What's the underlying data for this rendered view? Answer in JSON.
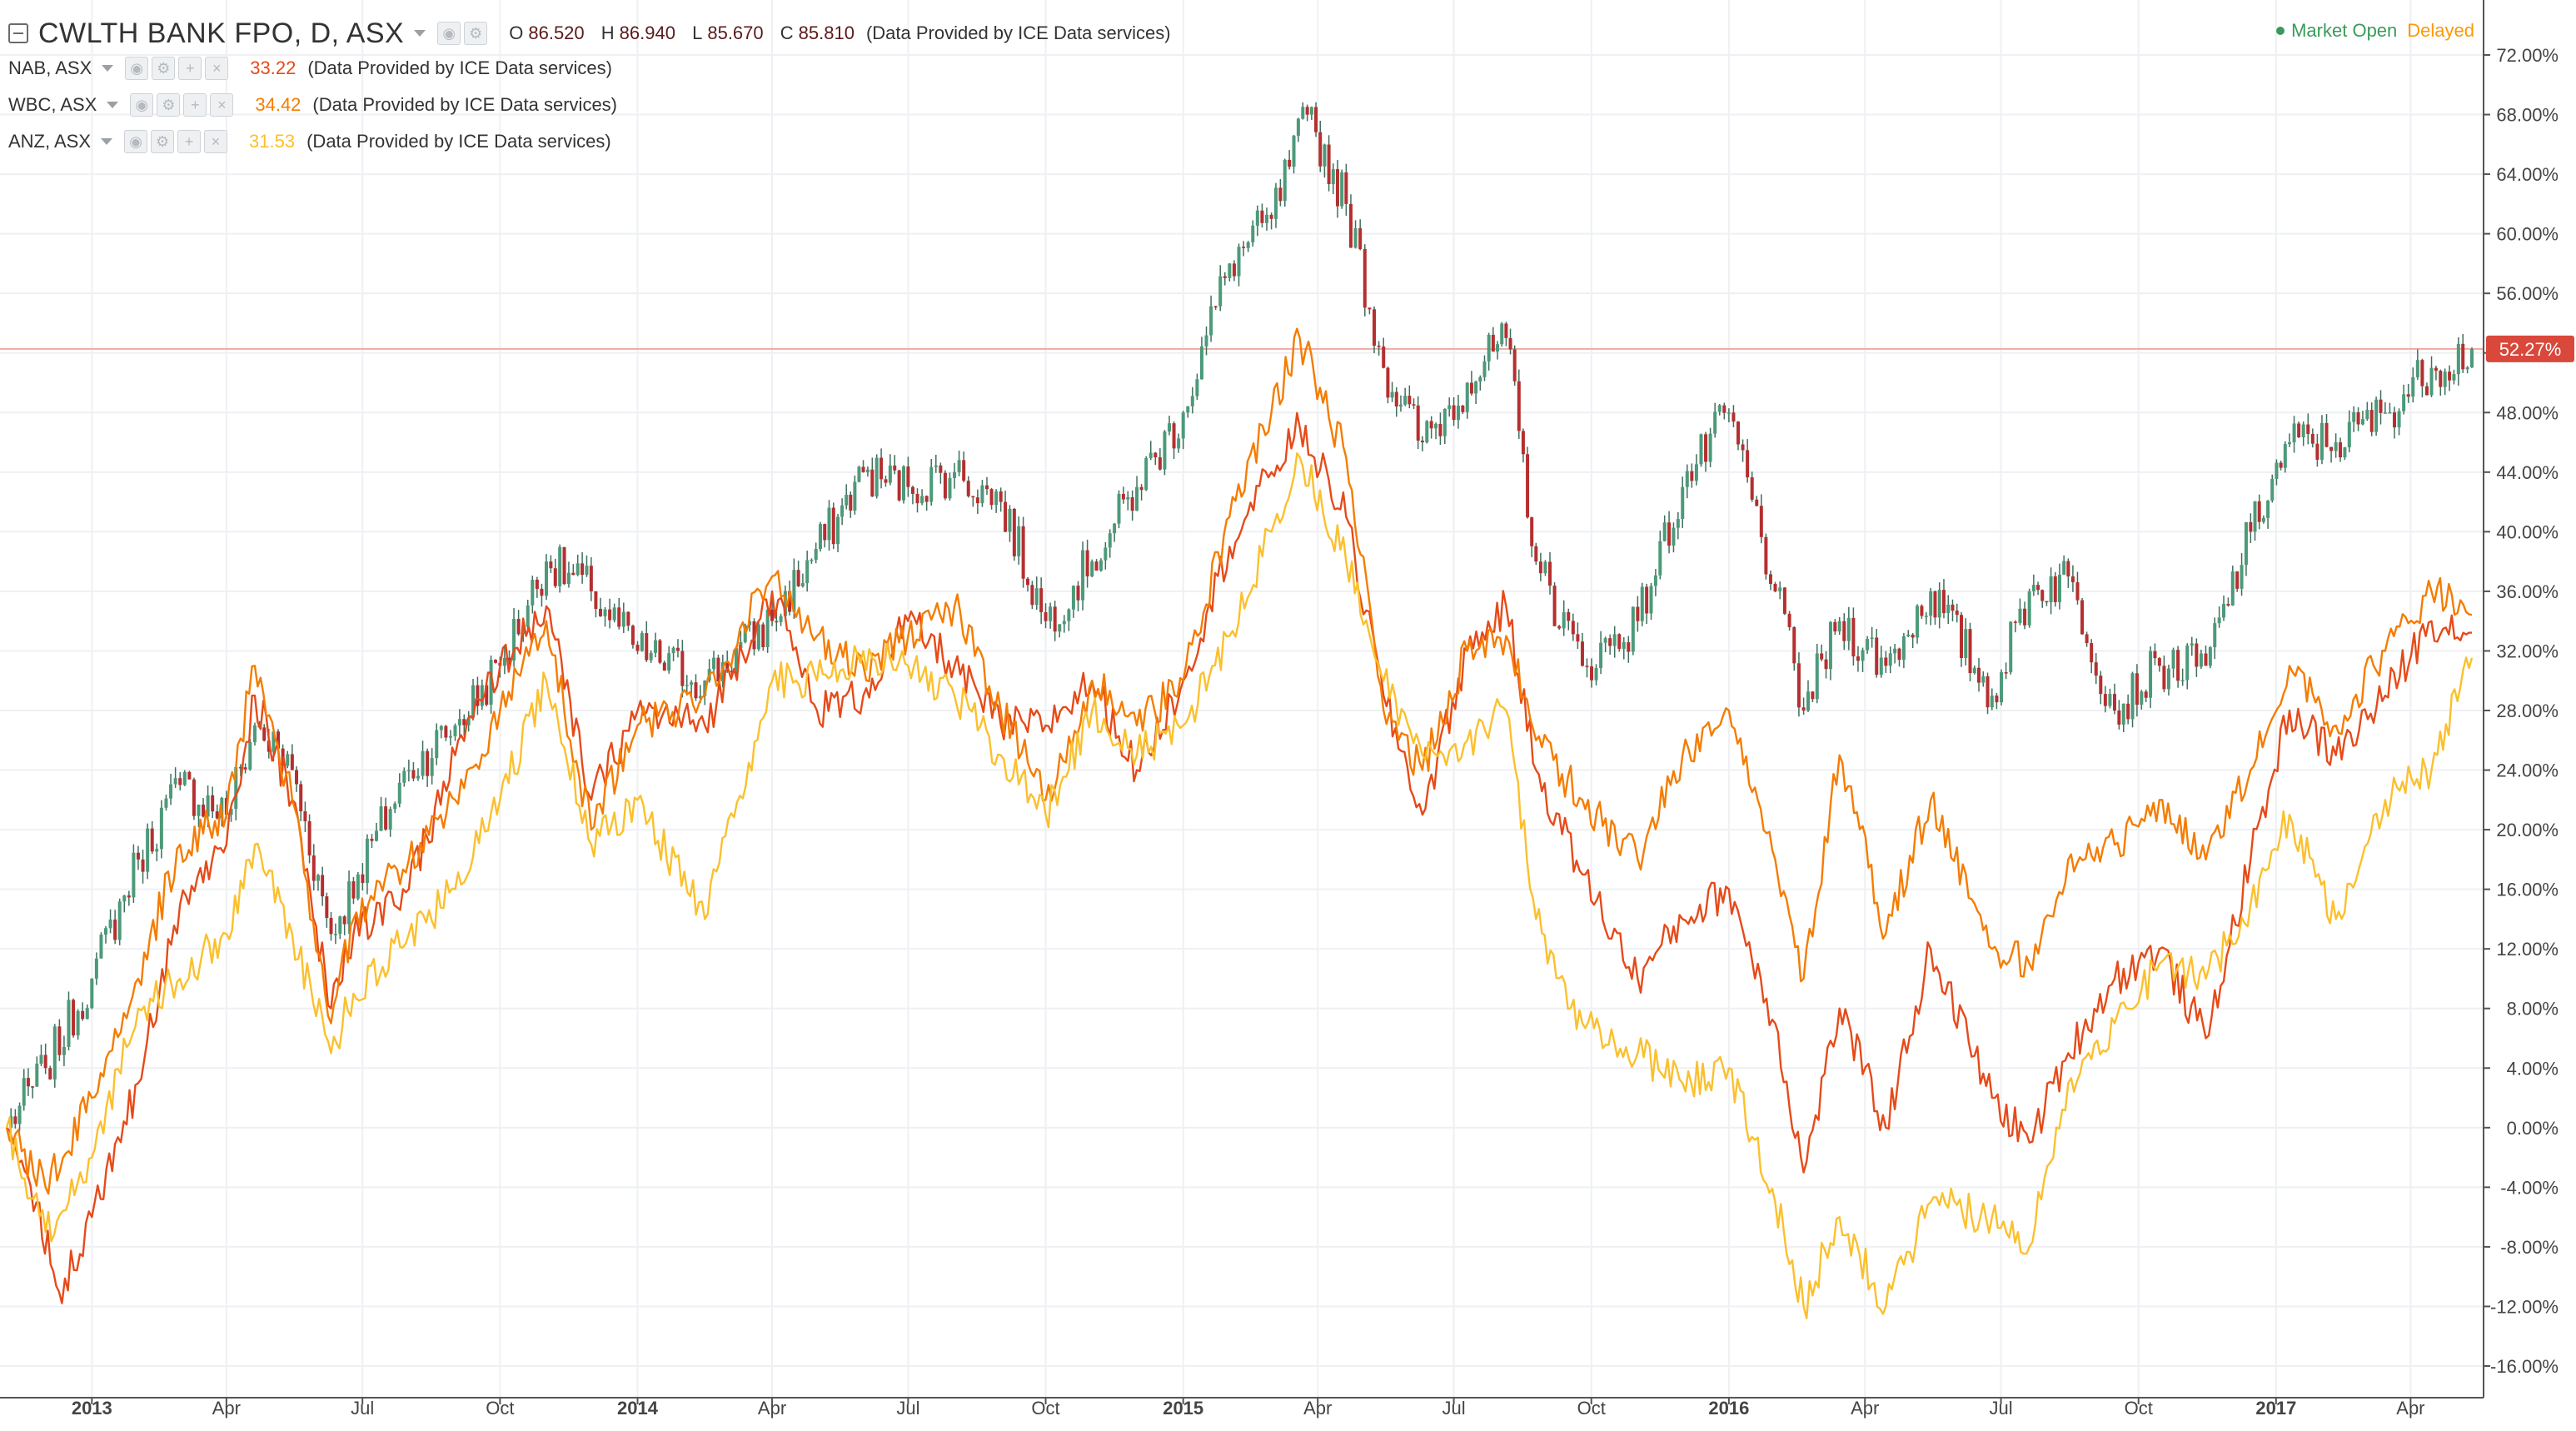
{
  "legend": {
    "main": {
      "symbol": "CWLTH BANK FPO, D, ASX",
      "open_label": "O",
      "open": "86.520",
      "high_label": "H",
      "high": "86.940",
      "low_label": "L",
      "low": "85.670",
      "close_label": "C",
      "close": "85.810",
      "provider": "(Data Provided by ICE Data services)"
    },
    "compare": [
      {
        "symbol": "NAB, ASX",
        "value": "33.22",
        "color": "#e64a19",
        "provider": "(Data Provided by ICE Data services)"
      },
      {
        "symbol": "WBC, ASX",
        "value": "34.42",
        "color": "#f57c00",
        "provider": "(Data Provided by ICE Data services)"
      },
      {
        "symbol": "ANZ, ASX",
        "value": "31.53",
        "color": "#fbc02d",
        "provider": "(Data Provided by ICE Data services)"
      }
    ]
  },
  "status": {
    "market": "Market Open",
    "delay": "Delayed"
  },
  "colors": {
    "up": "#4c9a7a",
    "down": "#b52f2f",
    "nab": "#e64a19",
    "wbc": "#f57c00",
    "anz": "#fbc02d",
    "last_badge": "#d9483b"
  },
  "icons": [
    "collapse-icon",
    "eye-icon",
    "gear-icon",
    "plus-icon",
    "close-icon",
    "caret-down-icon"
  ],
  "chart_data": {
    "type": "line",
    "y_unit": "%",
    "ylim": [
      -17,
      73
    ],
    "y_ticks": [
      "72.00%",
      "68.00%",
      "64.00%",
      "60.00%",
      "56.00%",
      "52.00%",
      "48.00%",
      "44.00%",
      "40.00%",
      "36.00%",
      "32.00%",
      "28.00%",
      "24.00%",
      "20.00%",
      "16.00%",
      "12.00%",
      "8.00%",
      "4.00%",
      "0.00%",
      "-4.00%",
      "-8.00%",
      "-12.00%",
      "-16.00%"
    ],
    "x_labels": [
      {
        "label": "2013",
        "date": "2013-01-01",
        "bold": true
      },
      {
        "label": "Apr",
        "date": "2013-04-01",
        "bold": false
      },
      {
        "label": "Jul",
        "date": "2013-07-01",
        "bold": false
      },
      {
        "label": "Oct",
        "date": "2013-10-01",
        "bold": false
      },
      {
        "label": "2014",
        "date": "2014-01-01",
        "bold": true
      },
      {
        "label": "Apr",
        "date": "2014-04-01",
        "bold": false
      },
      {
        "label": "Jul",
        "date": "2014-07-01",
        "bold": false
      },
      {
        "label": "Oct",
        "date": "2014-10-01",
        "bold": false
      },
      {
        "label": "2015",
        "date": "2015-01-01",
        "bold": true
      },
      {
        "label": "Apr",
        "date": "2015-04-01",
        "bold": false
      },
      {
        "label": "Jul",
        "date": "2015-07-01",
        "bold": false
      },
      {
        "label": "Oct",
        "date": "2015-10-01",
        "bold": false
      },
      {
        "label": "2016",
        "date": "2016-01-01",
        "bold": true
      },
      {
        "label": "Apr",
        "date": "2016-04-01",
        "bold": false
      },
      {
        "label": "Jul",
        "date": "2016-07-01",
        "bold": false
      },
      {
        "label": "Oct",
        "date": "2016-10-01",
        "bold": false
      },
      {
        "label": "2017",
        "date": "2017-01-01",
        "bold": true
      },
      {
        "label": "Apr",
        "date": "2017-04-01",
        "bold": false
      }
    ],
    "x_range": [
      "2012-11-05",
      "2017-05-12"
    ],
    "last_value_label": "52.27%",
    "last_value": 52.27,
    "series": [
      {
        "name": "CWLTH BANK FPO",
        "style": "candles",
        "points": [
          [
            "2012-11-05",
            0
          ],
          [
            "2012-12-01",
            4
          ],
          [
            "2013-01-01",
            10
          ],
          [
            "2013-02-01",
            18
          ],
          [
            "2013-03-01",
            23
          ],
          [
            "2013-04-01",
            21
          ],
          [
            "2013-04-20",
            27
          ],
          [
            "2013-05-15",
            24
          ],
          [
            "2013-06-10",
            13
          ],
          [
            "2013-06-28",
            17
          ],
          [
            "2013-08-01",
            24
          ],
          [
            "2013-09-01",
            27
          ],
          [
            "2013-10-01",
            31
          ],
          [
            "2013-11-01",
            38
          ],
          [
            "2013-12-01",
            36
          ],
          [
            "2014-01-01",
            32
          ],
          [
            "2014-02-15",
            30
          ],
          [
            "2014-04-01",
            34
          ],
          [
            "2014-05-15",
            41
          ],
          [
            "2014-06-01",
            44
          ],
          [
            "2014-07-01",
            43
          ],
          [
            "2014-08-01",
            44
          ],
          [
            "2014-09-01",
            42
          ],
          [
            "2014-10-01",
            34
          ],
          [
            "2014-11-01",
            38
          ],
          [
            "2014-12-01",
            43
          ],
          [
            "2015-01-01",
            48
          ],
          [
            "2015-02-01",
            58
          ],
          [
            "2015-03-01",
            61
          ],
          [
            "2015-03-25",
            68
          ],
          [
            "2015-04-20",
            62
          ],
          [
            "2015-05-15",
            51
          ],
          [
            "2015-06-10",
            46
          ],
          [
            "2015-07-10",
            50
          ],
          [
            "2015-08-05",
            53
          ],
          [
            "2015-08-25",
            38
          ],
          [
            "2015-09-25",
            31
          ],
          [
            "2015-11-01",
            34
          ],
          [
            "2015-12-01",
            43
          ],
          [
            "2016-01-01",
            48
          ],
          [
            "2016-02-01",
            36
          ],
          [
            "2016-02-20",
            28
          ],
          [
            "2016-03-15",
            34
          ],
          [
            "2016-04-15",
            31
          ],
          [
            "2016-05-15",
            36
          ],
          [
            "2016-06-25",
            29
          ],
          [
            "2016-07-20",
            36
          ],
          [
            "2016-08-15",
            37
          ],
          [
            "2016-09-15",
            28
          ],
          [
            "2016-10-15",
            31
          ],
          [
            "2016-11-15",
            31
          ],
          [
            "2016-12-15",
            40
          ],
          [
            "2017-01-10",
            46
          ],
          [
            "2017-02-10",
            46
          ],
          [
            "2017-03-15",
            48
          ],
          [
            "2017-04-15",
            51
          ],
          [
            "2017-05-12",
            52.27
          ]
        ]
      },
      {
        "name": "NAB, ASX",
        "style": "line",
        "points": [
          [
            "2012-11-05",
            0
          ],
          [
            "2012-11-25",
            -5
          ],
          [
            "2012-12-10",
            -11
          ],
          [
            "2013-01-01",
            -6
          ],
          [
            "2013-02-01",
            3
          ],
          [
            "2013-03-01",
            15
          ],
          [
            "2013-04-01",
            19
          ],
          [
            "2013-04-20",
            29
          ],
          [
            "2013-05-15",
            22
          ],
          [
            "2013-06-10",
            8
          ],
          [
            "2013-06-25",
            13
          ],
          [
            "2013-08-01",
            16
          ],
          [
            "2013-09-01",
            25
          ],
          [
            "2013-10-01",
            31
          ],
          [
            "2013-11-01",
            35
          ],
          [
            "2013-12-01",
            22
          ],
          [
            "2014-01-01",
            28
          ],
          [
            "2014-02-15",
            27
          ],
          [
            "2014-04-01",
            36
          ],
          [
            "2014-05-01",
            28
          ],
          [
            "2014-06-01",
            29
          ],
          [
            "2014-07-01",
            34
          ],
          [
            "2014-08-01",
            31
          ],
          [
            "2014-09-01",
            27
          ],
          [
            "2014-10-01",
            27
          ],
          [
            "2014-11-01",
            30
          ],
          [
            "2014-12-01",
            24
          ],
          [
            "2015-01-01",
            30
          ],
          [
            "2015-02-01",
            39
          ],
          [
            "2015-03-01",
            44
          ],
          [
            "2015-03-20",
            47
          ],
          [
            "2015-04-20",
            41
          ],
          [
            "2015-05-15",
            29
          ],
          [
            "2015-06-10",
            21
          ],
          [
            "2015-07-10",
            32
          ],
          [
            "2015-08-05",
            35
          ],
          [
            "2015-08-25",
            24
          ],
          [
            "2015-09-25",
            17
          ],
          [
            "2015-11-01",
            10
          ],
          [
            "2015-12-01",
            14
          ],
          [
            "2016-01-01",
            16
          ],
          [
            "2016-02-01",
            7
          ],
          [
            "2016-02-20",
            -3
          ],
          [
            "2016-03-15",
            8
          ],
          [
            "2016-04-15",
            0
          ],
          [
            "2016-05-15",
            12
          ],
          [
            "2016-06-25",
            2
          ],
          [
            "2016-07-20",
            -1
          ],
          [
            "2016-08-15",
            5
          ],
          [
            "2016-09-15",
            10
          ],
          [
            "2016-10-15",
            12
          ],
          [
            "2016-11-15",
            6
          ],
          [
            "2016-12-15",
            18
          ],
          [
            "2017-01-10",
            28
          ],
          [
            "2017-02-10",
            25
          ],
          [
            "2017-03-15",
            29
          ],
          [
            "2017-04-15",
            34
          ],
          [
            "2017-05-12",
            33.22
          ]
        ]
      },
      {
        "name": "WBC, ASX",
        "style": "line",
        "points": [
          [
            "2012-11-05",
            0
          ],
          [
            "2012-12-01",
            -4
          ],
          [
            "2013-01-01",
            2
          ],
          [
            "2013-02-01",
            10
          ],
          [
            "2013-03-01",
            19
          ],
          [
            "2013-04-01",
            21
          ],
          [
            "2013-04-20",
            31
          ],
          [
            "2013-05-15",
            22
          ],
          [
            "2013-06-10",
            7
          ],
          [
            "2013-06-25",
            14
          ],
          [
            "2013-08-01",
            18
          ],
          [
            "2013-09-01",
            22
          ],
          [
            "2013-10-01",
            28
          ],
          [
            "2013-11-01",
            34
          ],
          [
            "2013-12-01",
            20
          ],
          [
            "2014-01-01",
            27
          ],
          [
            "2014-02-15",
            29
          ],
          [
            "2014-04-01",
            37
          ],
          [
            "2014-05-01",
            33
          ],
          [
            "2014-06-01",
            31
          ],
          [
            "2014-07-01",
            33
          ],
          [
            "2014-08-01",
            35
          ],
          [
            "2014-09-01",
            28
          ],
          [
            "2014-10-01",
            22
          ],
          [
            "2014-11-01",
            30
          ],
          [
            "2014-12-01",
            27
          ],
          [
            "2015-01-01",
            30
          ],
          [
            "2015-02-01",
            41
          ],
          [
            "2015-03-01",
            48
          ],
          [
            "2015-03-20",
            53
          ],
          [
            "2015-04-20",
            45
          ],
          [
            "2015-05-15",
            28
          ],
          [
            "2015-06-10",
            24
          ],
          [
            "2015-07-10",
            32
          ],
          [
            "2015-08-05",
            33
          ],
          [
            "2015-08-25",
            26
          ],
          [
            "2015-09-25",
            22
          ],
          [
            "2015-11-01",
            18
          ],
          [
            "2015-12-01",
            25
          ],
          [
            "2016-01-01",
            28
          ],
          [
            "2016-02-01",
            18
          ],
          [
            "2016-02-20",
            10
          ],
          [
            "2016-03-15",
            25
          ],
          [
            "2016-04-15",
            13
          ],
          [
            "2016-05-15",
            22
          ],
          [
            "2016-06-25",
            12
          ],
          [
            "2016-07-20",
            11
          ],
          [
            "2016-08-15",
            18
          ],
          [
            "2016-09-15",
            19
          ],
          [
            "2016-10-15",
            22
          ],
          [
            "2016-11-15",
            18
          ],
          [
            "2016-12-15",
            24
          ],
          [
            "2017-01-10",
            31
          ],
          [
            "2017-02-10",
            27
          ],
          [
            "2017-03-15",
            32
          ],
          [
            "2017-04-15",
            36
          ],
          [
            "2017-05-12",
            34.42
          ]
        ]
      },
      {
        "name": "ANZ, ASX",
        "style": "line",
        "points": [
          [
            "2012-11-05",
            0
          ],
          [
            "2012-12-01",
            -7
          ],
          [
            "2013-01-01",
            -2
          ],
          [
            "2013-02-01",
            8
          ],
          [
            "2013-03-01",
            10
          ],
          [
            "2013-04-01",
            13
          ],
          [
            "2013-04-20",
            19
          ],
          [
            "2013-05-15",
            13
          ],
          [
            "2013-06-10",
            5
          ],
          [
            "2013-06-25",
            9
          ],
          [
            "2013-08-01",
            13
          ],
          [
            "2013-09-01",
            16
          ],
          [
            "2013-10-01",
            22
          ],
          [
            "2013-11-01",
            30
          ],
          [
            "2013-12-01",
            19
          ],
          [
            "2014-01-01",
            22
          ],
          [
            "2014-02-15",
            14
          ],
          [
            "2014-04-01",
            30
          ],
          [
            "2014-05-01",
            30
          ],
          [
            "2014-06-01",
            32
          ],
          [
            "2014-07-01",
            31
          ],
          [
            "2014-08-01",
            29
          ],
          [
            "2014-09-01",
            25
          ],
          [
            "2014-10-01",
            21
          ],
          [
            "2014-11-01",
            28
          ],
          [
            "2014-12-01",
            25
          ],
          [
            "2015-01-01",
            27
          ],
          [
            "2015-02-01",
            33
          ],
          [
            "2015-03-01",
            40
          ],
          [
            "2015-03-20",
            45
          ],
          [
            "2015-04-20",
            38
          ],
          [
            "2015-05-15",
            30
          ],
          [
            "2015-06-10",
            25
          ],
          [
            "2015-07-10",
            26
          ],
          [
            "2015-08-05",
            28
          ],
          [
            "2015-08-25",
            14
          ],
          [
            "2015-09-25",
            7
          ],
          [
            "2015-11-01",
            5
          ],
          [
            "2015-12-01",
            3
          ],
          [
            "2016-01-01",
            4
          ],
          [
            "2016-02-01",
            -5
          ],
          [
            "2016-02-20",
            -12
          ],
          [
            "2016-03-15",
            -6
          ],
          [
            "2016-04-15",
            -12
          ],
          [
            "2016-05-15",
            -5
          ],
          [
            "2016-06-25",
            -6
          ],
          [
            "2016-07-20",
            -8
          ],
          [
            "2016-08-15",
            3
          ],
          [
            "2016-09-15",
            7
          ],
          [
            "2016-10-15",
            11
          ],
          [
            "2016-11-15",
            10
          ],
          [
            "2016-12-15",
            15
          ],
          [
            "2017-01-10",
            21
          ],
          [
            "2017-02-10",
            14
          ],
          [
            "2017-03-15",
            22
          ],
          [
            "2017-04-15",
            24
          ],
          [
            "2017-05-12",
            31.53
          ]
        ]
      }
    ],
    "grid": true,
    "legend_position": "top-left"
  }
}
